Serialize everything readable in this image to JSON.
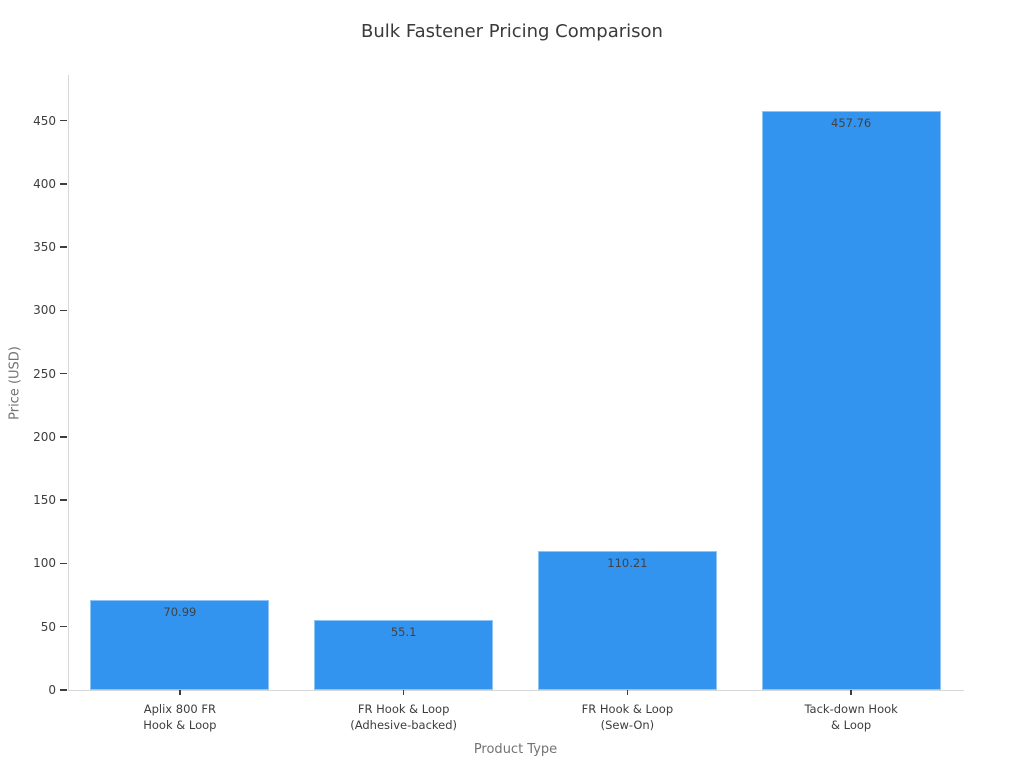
{
  "chart_data": {
    "type": "bar",
    "title": "Bulk Fastener Pricing Comparison",
    "xlabel": "Product Type",
    "ylabel": "Price (USD)",
    "categories": [
      "Aplix 800 FR Hook & Loop",
      "FR Hook & Loop (Adhesive-backed)",
      "FR Hook & Loop (Sew-On)",
      "Tack-down Hook & Loop"
    ],
    "category_lines": [
      [
        "Aplix 800 FR",
        "Hook & Loop"
      ],
      [
        "FR Hook & Loop",
        "(Adhesive-backed)"
      ],
      [
        "FR Hook & Loop",
        "(Sew-On)"
      ],
      [
        "Tack-down Hook",
        "& Loop"
      ]
    ],
    "values": [
      70.99,
      55.1,
      110.21,
      457.76
    ],
    "value_labels": [
      "70.99",
      "55.1",
      "110.21",
      "457.76"
    ],
    "ylim": [
      0,
      486
    ],
    "yticks": [
      0,
      50,
      100,
      150,
      200,
      250,
      300,
      350,
      400,
      450
    ],
    "grid": false,
    "legend": null,
    "colors": {
      "bar": "#3394f0",
      "accent_text": "#424242"
    }
  }
}
